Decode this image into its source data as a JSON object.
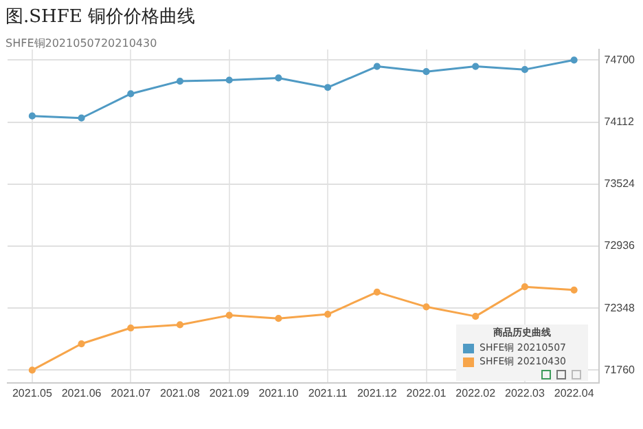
{
  "chart_data": {
    "type": "line",
    "title": "图.SHFE 铜价价格曲线",
    "annotations": [
      "SHFE铜2021050720210430"
    ],
    "legend_title": "商品历史曲线",
    "legend": "bottom right",
    "grid": true,
    "marker": "circle",
    "line_style": "solid",
    "categories": [
      "2021.05",
      "2021.06",
      "2021.07",
      "2021.08",
      "2021.09",
      "2021.10",
      "2021.11",
      "2021.12",
      "2022.01",
      "2022.02",
      "2022.03",
      "2022.04"
    ],
    "ylim": [
      71640,
      74800
    ],
    "yticks": [
      71760,
      72348,
      72936,
      73524,
      74112,
      74700
    ],
    "series": [
      {
        "name": "SHFE铜 20210507",
        "color": "#4f9ac4",
        "values": [
          74170,
          74150,
          74380,
          74500,
          74510,
          74530,
          74440,
          74640,
          74590,
          74640,
          74610,
          74700
        ]
      },
      {
        "name": "SHFE铜 20210430",
        "color": "#f7a54a",
        "values": [
          71760,
          72010,
          72160,
          72190,
          72280,
          72250,
          72290,
          72500,
          72360,
          72270,
          72550,
          72520
        ]
      }
    ]
  }
}
